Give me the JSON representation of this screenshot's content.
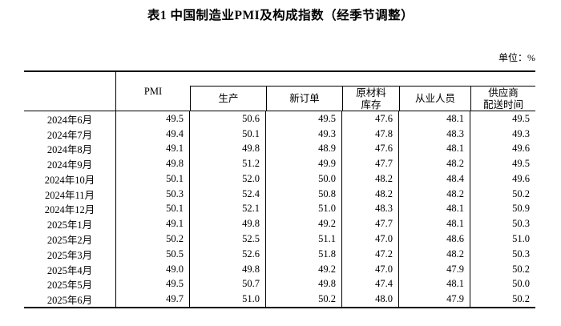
{
  "title": "表1 中国制造业PMI及构成指数（经季节调整）",
  "unit_label": "单位：%",
  "table": {
    "headers": {
      "month": "",
      "pmi": "PMI",
      "production": "生产",
      "new_orders": "新订单",
      "raw_materials": "原材料\n库存",
      "employment": "从业人员",
      "supplier_delivery": "供应商\n配送时间"
    }
  },
  "colors": {
    "text": "#000000",
    "border": "#000000",
    "background": "#ffffff"
  },
  "chart_data": {
    "type": "table",
    "title": "表1 中国制造业PMI及构成指数（经季节调整）",
    "unit": "%",
    "columns": [
      "",
      "PMI",
      "生产",
      "新订单",
      "原材料库存",
      "从业人员",
      "供应商配送时间"
    ],
    "rows": [
      [
        "2024年6月",
        "49.5",
        "50.6",
        "49.5",
        "47.6",
        "48.1",
        "49.5"
      ],
      [
        "2024年7月",
        "49.4",
        "50.1",
        "49.3",
        "47.8",
        "48.3",
        "49.3"
      ],
      [
        "2024年8月",
        "49.1",
        "49.8",
        "48.9",
        "47.6",
        "48.1",
        "49.6"
      ],
      [
        "2024年9月",
        "49.8",
        "51.2",
        "49.9",
        "47.7",
        "48.2",
        "49.5"
      ],
      [
        "2024年10月",
        "50.1",
        "52.0",
        "50.0",
        "48.2",
        "48.4",
        "49.6"
      ],
      [
        "2024年11月",
        "50.3",
        "52.4",
        "50.8",
        "48.2",
        "48.2",
        "50.2"
      ],
      [
        "2024年12月",
        "50.1",
        "52.1",
        "51.0",
        "48.3",
        "48.1",
        "50.9"
      ],
      [
        "2025年1月",
        "49.1",
        "49.8",
        "49.2",
        "47.7",
        "48.1",
        "50.3"
      ],
      [
        "2025年2月",
        "50.2",
        "52.5",
        "51.1",
        "47.0",
        "48.6",
        "51.0"
      ],
      [
        "2025年3月",
        "50.5",
        "52.6",
        "51.8",
        "47.2",
        "48.2",
        "50.3"
      ],
      [
        "2025年4月",
        "49.0",
        "49.8",
        "49.2",
        "47.0",
        "47.9",
        "50.2"
      ],
      [
        "2025年5月",
        "49.5",
        "50.7",
        "49.8",
        "47.4",
        "48.1",
        "50.0"
      ],
      [
        "2025年6月",
        "49.7",
        "51.0",
        "50.2",
        "48.0",
        "47.9",
        "50.2"
      ]
    ]
  }
}
